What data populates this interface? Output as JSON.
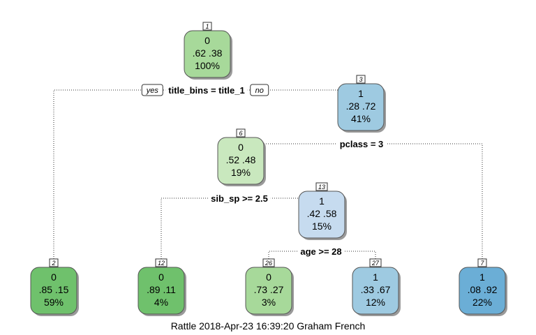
{
  "caption": "Rattle 2018-Apr-23 16:39:20 Graham French",
  "edge_labels": {
    "yes": "yes",
    "no": "no"
  },
  "colors": {
    "green_dark": "#6fc16c",
    "green_mid": "#a7d99a",
    "green_light": "#c9e8be",
    "blue_light": "#c6dbef",
    "blue_mid": "#9ecae1",
    "blue_dark": "#6baed6"
  },
  "nodes": [
    {
      "id": "1",
      "class": "0",
      "probs": ".62  .38",
      "pct": "100%",
      "color": "#a7d99a"
    },
    {
      "id": "3",
      "class": "1",
      "probs": ".28  .72",
      "pct": "41%",
      "color": "#9ecae1"
    },
    {
      "id": "6",
      "class": "0",
      "probs": ".52  .48",
      "pct": "19%",
      "color": "#c9e8be"
    },
    {
      "id": "13",
      "class": "1",
      "probs": ".42  .58",
      "pct": "15%",
      "color": "#c6dbef"
    },
    {
      "id": "2",
      "class": "0",
      "probs": ".85  .15",
      "pct": "59%",
      "color": "#6fc16c"
    },
    {
      "id": "12",
      "class": "0",
      "probs": ".89  .11",
      "pct": "4%",
      "color": "#6fc16c"
    },
    {
      "id": "26",
      "class": "0",
      "probs": ".73  .27",
      "pct": "3%",
      "color": "#a7d99a"
    },
    {
      "id": "27",
      "class": "1",
      "probs": ".33  .67",
      "pct": "12%",
      "color": "#9ecae1"
    },
    {
      "id": "7",
      "class": "1",
      "probs": ".08  .92",
      "pct": "22%",
      "color": "#6baed6"
    }
  ],
  "splits": [
    {
      "node": "1",
      "label": "title_bins = title_1"
    },
    {
      "node": "3",
      "label": "pclass = 3"
    },
    {
      "node": "6",
      "label": "sib_sp >= 2.5"
    },
    {
      "node": "13",
      "label": "age >= 28"
    }
  ]
}
